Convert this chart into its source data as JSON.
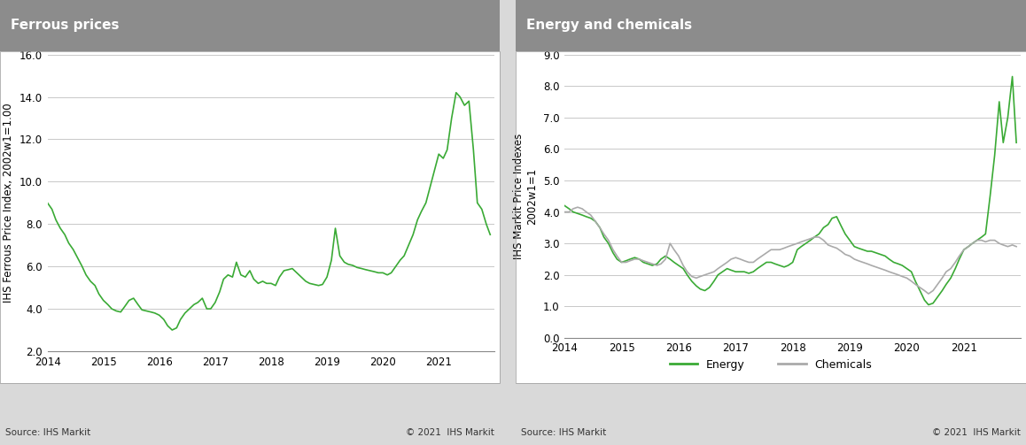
{
  "left_title": "Ferrous prices",
  "right_title": "Energy and chemicals",
  "left_ylabel": "IHS Ferrous Price Index, 2002w1=1.00",
  "right_ylabel": "IHS Markit Price Indexes\n2002w1=1",
  "left_ylim": [
    2.0,
    16.0
  ],
  "left_yticks": [
    2.0,
    4.0,
    6.0,
    8.0,
    10.0,
    12.0,
    14.0,
    16.0
  ],
  "right_ylim": [
    0.0,
    9.0
  ],
  "right_yticks": [
    0.0,
    1.0,
    2.0,
    3.0,
    4.0,
    5.0,
    6.0,
    7.0,
    8.0,
    9.0
  ],
  "xlim_left": [
    2014.0,
    2022.0
  ],
  "xlim_right": [
    2014.0,
    2022.0
  ],
  "xticks": [
    2014,
    2015,
    2016,
    2017,
    2018,
    2019,
    2020,
    2021
  ],
  "source_left": "Source: IHS Markit",
  "source_right": "Source: IHS Markit",
  "copyright_left": "© 2021  IHS Markit",
  "copyright_right": "© 2021  IHS Markit",
  "line_color_green": "#3aaa35",
  "line_color_gray": "#aaaaaa",
  "title_bg_color": "#8c8c8c",
  "title_text_color": "#ffffff",
  "fig_bg_color": "#d9d9d9",
  "panel_bg_color": "#ffffff",
  "grid_color": "#c8c8c8",
  "legend_energy": "Energy",
  "legend_chemicals": "Chemicals",
  "ferrous_x": [
    2014.0,
    2014.08,
    2014.15,
    2014.23,
    2014.31,
    2014.38,
    2014.46,
    2014.54,
    2014.62,
    2014.69,
    2014.77,
    2014.85,
    2014.92,
    2015.0,
    2015.08,
    2015.15,
    2015.23,
    2015.31,
    2015.38,
    2015.46,
    2015.54,
    2015.62,
    2015.69,
    2015.77,
    2015.85,
    2015.92,
    2016.0,
    2016.08,
    2016.15,
    2016.23,
    2016.31,
    2016.38,
    2016.46,
    2016.54,
    2016.62,
    2016.69,
    2016.77,
    2016.85,
    2016.92,
    2017.0,
    2017.08,
    2017.15,
    2017.23,
    2017.31,
    2017.38,
    2017.46,
    2017.54,
    2017.62,
    2017.69,
    2017.77,
    2017.85,
    2017.92,
    2018.0,
    2018.08,
    2018.15,
    2018.23,
    2018.31,
    2018.38,
    2018.46,
    2018.54,
    2018.62,
    2018.69,
    2018.77,
    2018.85,
    2018.92,
    2019.0,
    2019.08,
    2019.15,
    2019.23,
    2019.31,
    2019.38,
    2019.46,
    2019.54,
    2019.62,
    2019.69,
    2019.77,
    2019.85,
    2019.92,
    2020.0,
    2020.08,
    2020.15,
    2020.23,
    2020.31,
    2020.38,
    2020.46,
    2020.54,
    2020.62,
    2020.69,
    2020.77,
    2020.85,
    2020.92,
    2021.0,
    2021.08,
    2021.15,
    2021.23,
    2021.31,
    2021.38,
    2021.46,
    2021.54,
    2021.62,
    2021.69,
    2021.77,
    2021.85,
    2021.92
  ],
  "ferrous_y": [
    9.0,
    8.7,
    8.2,
    7.8,
    7.5,
    7.1,
    6.8,
    6.4,
    6.0,
    5.6,
    5.3,
    5.1,
    4.7,
    4.4,
    4.2,
    4.0,
    3.9,
    3.85,
    4.1,
    4.4,
    4.5,
    4.2,
    3.95,
    3.9,
    3.85,
    3.8,
    3.7,
    3.5,
    3.2,
    3.0,
    3.1,
    3.5,
    3.8,
    4.0,
    4.2,
    4.3,
    4.5,
    4.0,
    4.0,
    4.3,
    4.8,
    5.4,
    5.6,
    5.5,
    6.2,
    5.6,
    5.5,
    5.8,
    5.4,
    5.2,
    5.3,
    5.2,
    5.2,
    5.1,
    5.5,
    5.8,
    5.85,
    5.9,
    5.7,
    5.5,
    5.3,
    5.2,
    5.15,
    5.1,
    5.15,
    5.5,
    6.3,
    7.8,
    6.5,
    6.2,
    6.1,
    6.05,
    5.95,
    5.9,
    5.85,
    5.8,
    5.75,
    5.7,
    5.7,
    5.6,
    5.7,
    6.0,
    6.3,
    6.5,
    7.0,
    7.5,
    8.2,
    8.6,
    9.0,
    9.8,
    10.5,
    11.3,
    11.1,
    11.5,
    13.0,
    14.2,
    14.0,
    13.6,
    13.8,
    11.5,
    9.0,
    8.7,
    8.0,
    7.5
  ],
  "energy_x": [
    2014.0,
    2014.08,
    2014.15,
    2014.23,
    2014.31,
    2014.38,
    2014.46,
    2014.54,
    2014.62,
    2014.69,
    2014.77,
    2014.85,
    2014.92,
    2015.0,
    2015.08,
    2015.15,
    2015.23,
    2015.31,
    2015.38,
    2015.46,
    2015.54,
    2015.62,
    2015.69,
    2015.77,
    2015.85,
    2015.92,
    2016.0,
    2016.08,
    2016.15,
    2016.23,
    2016.31,
    2016.38,
    2016.46,
    2016.54,
    2016.62,
    2016.69,
    2016.77,
    2016.85,
    2016.92,
    2017.0,
    2017.08,
    2017.15,
    2017.23,
    2017.31,
    2017.38,
    2017.46,
    2017.54,
    2017.62,
    2017.69,
    2017.77,
    2017.85,
    2017.92,
    2018.0,
    2018.08,
    2018.15,
    2018.23,
    2018.31,
    2018.38,
    2018.46,
    2018.54,
    2018.62,
    2018.69,
    2018.77,
    2018.85,
    2018.92,
    2019.0,
    2019.08,
    2019.15,
    2019.23,
    2019.31,
    2019.38,
    2019.46,
    2019.54,
    2019.62,
    2019.69,
    2019.77,
    2019.85,
    2019.92,
    2020.0,
    2020.08,
    2020.15,
    2020.23,
    2020.31,
    2020.38,
    2020.46,
    2020.54,
    2020.62,
    2020.69,
    2020.77,
    2020.85,
    2020.92,
    2021.0,
    2021.08,
    2021.15,
    2021.23,
    2021.31,
    2021.38,
    2021.46,
    2021.54,
    2021.62,
    2021.69,
    2021.77,
    2021.85,
    2021.92
  ],
  "energy_y": [
    4.2,
    4.1,
    4.0,
    3.95,
    3.9,
    3.85,
    3.8,
    3.7,
    3.5,
    3.2,
    3.0,
    2.7,
    2.5,
    2.4,
    2.45,
    2.5,
    2.55,
    2.5,
    2.4,
    2.35,
    2.3,
    2.35,
    2.5,
    2.6,
    2.5,
    2.4,
    2.3,
    2.2,
    2.0,
    1.8,
    1.65,
    1.55,
    1.5,
    1.6,
    1.8,
    2.0,
    2.1,
    2.2,
    2.15,
    2.1,
    2.1,
    2.1,
    2.05,
    2.1,
    2.2,
    2.3,
    2.4,
    2.4,
    2.35,
    2.3,
    2.25,
    2.3,
    2.4,
    2.8,
    2.9,
    3.0,
    3.1,
    3.2,
    3.3,
    3.5,
    3.6,
    3.8,
    3.85,
    3.55,
    3.3,
    3.1,
    2.9,
    2.85,
    2.8,
    2.75,
    2.75,
    2.7,
    2.65,
    2.6,
    2.5,
    2.4,
    2.35,
    2.3,
    2.2,
    2.1,
    1.8,
    1.5,
    1.2,
    1.05,
    1.1,
    1.3,
    1.5,
    1.7,
    1.9,
    2.2,
    2.5,
    2.8,
    2.9,
    3.0,
    3.1,
    3.2,
    3.3,
    4.5,
    5.8,
    7.5,
    6.2,
    7.0,
    8.3,
    6.2
  ],
  "chemicals_x": [
    2014.0,
    2014.08,
    2014.15,
    2014.23,
    2014.31,
    2014.38,
    2014.46,
    2014.54,
    2014.62,
    2014.69,
    2014.77,
    2014.85,
    2014.92,
    2015.0,
    2015.08,
    2015.15,
    2015.23,
    2015.31,
    2015.38,
    2015.46,
    2015.54,
    2015.62,
    2015.69,
    2015.77,
    2015.85,
    2015.92,
    2016.0,
    2016.08,
    2016.15,
    2016.23,
    2016.31,
    2016.38,
    2016.46,
    2016.54,
    2016.62,
    2016.69,
    2016.77,
    2016.85,
    2016.92,
    2017.0,
    2017.08,
    2017.15,
    2017.23,
    2017.31,
    2017.38,
    2017.46,
    2017.54,
    2017.62,
    2017.69,
    2017.77,
    2017.85,
    2017.92,
    2018.0,
    2018.08,
    2018.15,
    2018.23,
    2018.31,
    2018.38,
    2018.46,
    2018.54,
    2018.62,
    2018.69,
    2018.77,
    2018.85,
    2018.92,
    2019.0,
    2019.08,
    2019.15,
    2019.23,
    2019.31,
    2019.38,
    2019.46,
    2019.54,
    2019.62,
    2019.69,
    2019.77,
    2019.85,
    2019.92,
    2020.0,
    2020.08,
    2020.15,
    2020.23,
    2020.31,
    2020.38,
    2020.46,
    2020.54,
    2020.62,
    2020.69,
    2020.77,
    2020.85,
    2020.92,
    2021.0,
    2021.08,
    2021.15,
    2021.23,
    2021.31,
    2021.38,
    2021.46,
    2021.54,
    2021.62,
    2021.69,
    2021.77,
    2021.85,
    2021.92
  ],
  "chemicals_y": [
    4.0,
    4.0,
    4.1,
    4.15,
    4.1,
    4.0,
    3.9,
    3.7,
    3.5,
    3.3,
    3.1,
    2.8,
    2.6,
    2.4,
    2.4,
    2.45,
    2.5,
    2.5,
    2.45,
    2.4,
    2.35,
    2.3,
    2.35,
    2.5,
    3.0,
    2.8,
    2.6,
    2.3,
    2.1,
    1.95,
    1.9,
    1.95,
    2.0,
    2.05,
    2.1,
    2.2,
    2.3,
    2.4,
    2.5,
    2.55,
    2.5,
    2.45,
    2.4,
    2.4,
    2.5,
    2.6,
    2.7,
    2.8,
    2.8,
    2.8,
    2.85,
    2.9,
    2.95,
    3.0,
    3.05,
    3.1,
    3.15,
    3.2,
    3.2,
    3.1,
    2.95,
    2.9,
    2.85,
    2.75,
    2.65,
    2.6,
    2.5,
    2.45,
    2.4,
    2.35,
    2.3,
    2.25,
    2.2,
    2.15,
    2.1,
    2.05,
    2.0,
    1.95,
    1.9,
    1.8,
    1.7,
    1.6,
    1.5,
    1.4,
    1.5,
    1.7,
    1.9,
    2.1,
    2.2,
    2.4,
    2.6,
    2.8,
    2.9,
    3.0,
    3.1,
    3.1,
    3.05,
    3.1,
    3.1,
    3.0,
    2.95,
    2.9,
    2.95,
    2.9
  ]
}
